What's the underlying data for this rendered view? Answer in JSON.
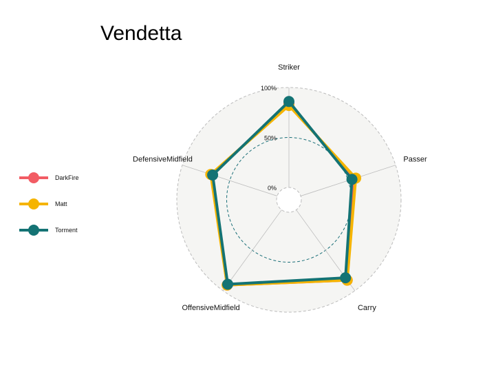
{
  "chart_data": {
    "type": "radar",
    "title": "Vendetta",
    "axes": [
      "Striker",
      "Passer",
      "Carry",
      "OffensiveMidfield",
      "DefensiveMidfield"
    ],
    "range": [
      0,
      100
    ],
    "ticks": [
      {
        "value": 0,
        "label": "0%"
      },
      {
        "value": 50,
        "label": "50%"
      },
      {
        "value": 100,
        "label": "100%"
      }
    ],
    "legend_position": "left",
    "series": [
      {
        "name": "DarkFire",
        "color": "#F25C64",
        "values": [
          84,
          56,
          87,
          93,
          69
        ]
      },
      {
        "name": "Matt",
        "color": "#F5B400",
        "values": [
          82,
          58,
          87,
          93,
          70
        ]
      },
      {
        "name": "Torment",
        "color": "#147374",
        "values": [
          86,
          54,
          84,
          92,
          68
        ]
      }
    ]
  }
}
